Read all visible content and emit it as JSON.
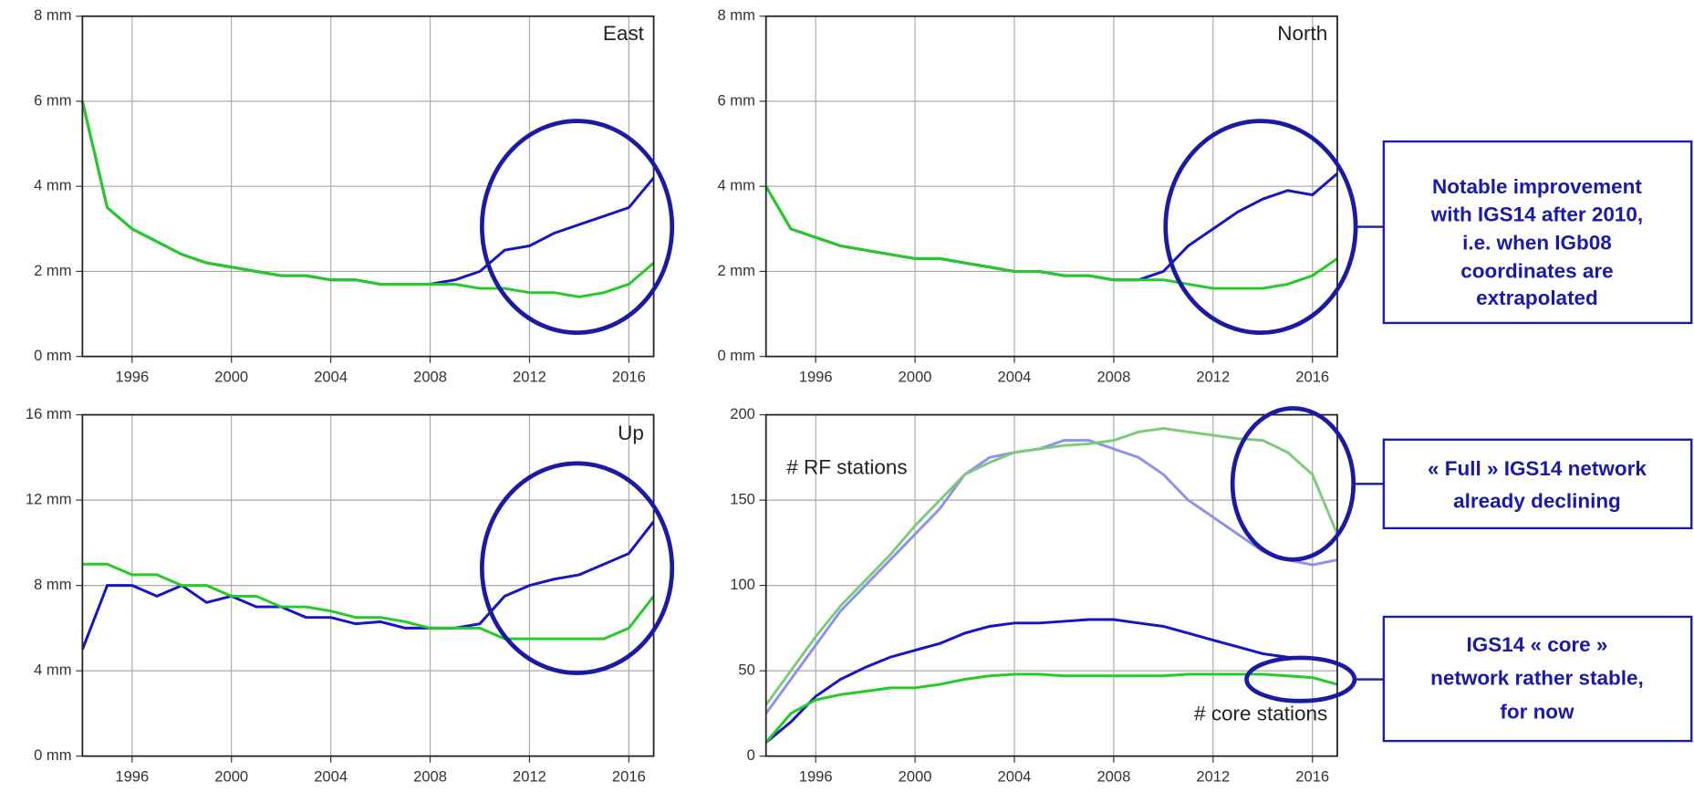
{
  "chart_data": [
    {
      "type": "line",
      "annotations": [
        "East"
      ],
      "x": [
        1994,
        1995,
        1996,
        1997,
        1998,
        1999,
        2000,
        2001,
        2002,
        2003,
        2004,
        2005,
        2006,
        2007,
        2008,
        2009,
        2010,
        2011,
        2012,
        2013,
        2014,
        2015,
        2016,
        2017
      ],
      "series": [
        {
          "color": "#1414c8",
          "values": [
            6,
            3.5,
            3,
            2.7,
            2.4,
            2.2,
            2.1,
            2.0,
            1.9,
            1.9,
            1.8,
            1.8,
            1.7,
            1.7,
            1.7,
            1.8,
            2.0,
            2.5,
            2.6,
            2.9,
            3.1,
            3.3,
            3.5,
            4.2
          ]
        },
        {
          "color": "#22cc22",
          "values": [
            6,
            3.5,
            3,
            2.7,
            2.4,
            2.2,
            2.1,
            2.0,
            1.9,
            1.9,
            1.8,
            1.8,
            1.7,
            1.7,
            1.7,
            1.7,
            1.6,
            1.6,
            1.5,
            1.5,
            1.4,
            1.5,
            1.7,
            2.2
          ]
        }
      ],
      "xlim": [
        1994,
        2017
      ],
      "xticks": [
        1996,
        2000,
        2004,
        2008,
        2012,
        2016
      ],
      "ylim": [
        0,
        8
      ],
      "yticks": [
        {
          "value": 0,
          "label": "0 mm"
        },
        {
          "value": 2,
          "label": "2 mm"
        },
        {
          "value": 4,
          "label": "4 mm"
        },
        {
          "value": 6,
          "label": "6 mm"
        },
        {
          "value": 8,
          "label": "8 mm"
        }
      ],
      "grid": true
    },
    {
      "type": "line",
      "annotations": [
        "North"
      ],
      "x": [
        1994,
        1995,
        1996,
        1997,
        1998,
        1999,
        2000,
        2001,
        2002,
        2003,
        2004,
        2005,
        2006,
        2007,
        2008,
        2009,
        2010,
        2011,
        2012,
        2013,
        2014,
        2015,
        2016,
        2017
      ],
      "series": [
        {
          "color": "#1414c8",
          "values": [
            4,
            3,
            2.8,
            2.6,
            2.5,
            2.4,
            2.3,
            2.3,
            2.2,
            2.1,
            2.0,
            2.0,
            1.9,
            1.9,
            1.8,
            1.8,
            2.0,
            2.6,
            3.0,
            3.4,
            3.7,
            3.9,
            3.8,
            4.3
          ]
        },
        {
          "color": "#22cc22",
          "values": [
            4,
            3,
            2.8,
            2.6,
            2.5,
            2.4,
            2.3,
            2.3,
            2.2,
            2.1,
            2.0,
            2.0,
            1.9,
            1.9,
            1.8,
            1.8,
            1.8,
            1.7,
            1.6,
            1.6,
            1.6,
            1.7,
            1.9,
            2.3
          ]
        }
      ],
      "xlim": [
        1994,
        2017
      ],
      "xticks": [
        1996,
        2000,
        2004,
        2008,
        2012,
        2016
      ],
      "ylim": [
        0,
        8
      ],
      "yticks": [
        {
          "value": 0,
          "label": "0 mm"
        },
        {
          "value": 2,
          "label": "2 mm"
        },
        {
          "value": 4,
          "label": "4 mm"
        },
        {
          "value": 6,
          "label": "6 mm"
        },
        {
          "value": 8,
          "label": "8 mm"
        }
      ],
      "grid": true
    },
    {
      "type": "line",
      "annotations": [
        "Up"
      ],
      "x": [
        1994,
        1995,
        1996,
        1997,
        1998,
        1999,
        2000,
        2001,
        2002,
        2003,
        2004,
        2005,
        2006,
        2007,
        2008,
        2009,
        2010,
        2011,
        2012,
        2013,
        2014,
        2015,
        2016,
        2017
      ],
      "series": [
        {
          "color": "#1414c8",
          "values": [
            5,
            8,
            8,
            7.5,
            8,
            7.2,
            7.5,
            7,
            7,
            6.5,
            6.5,
            6.2,
            6.3,
            6,
            6,
            6,
            6.2,
            7.5,
            8,
            8.3,
            8.5,
            9,
            9.5,
            11
          ]
        },
        {
          "color": "#22cc22",
          "values": [
            9,
            9,
            8.5,
            8.5,
            8,
            8,
            7.5,
            7.5,
            7,
            7,
            6.8,
            6.5,
            6.5,
            6.3,
            6,
            6,
            6,
            5.5,
            5.5,
            5.5,
            5.5,
            5.5,
            6,
            7.5
          ]
        }
      ],
      "xlim": [
        1994,
        2017
      ],
      "xticks": [
        1996,
        2000,
        2004,
        2008,
        2012,
        2016
      ],
      "ylim": [
        0,
        16
      ],
      "yticks": [
        {
          "value": 0,
          "label": "0 mm"
        },
        {
          "value": 4,
          "label": "4 mm"
        },
        {
          "value": 8,
          "label": "8 mm"
        },
        {
          "value": 12,
          "label": "12 mm"
        },
        {
          "value": 16,
          "label": "16 mm"
        }
      ],
      "grid": true
    },
    {
      "type": "line",
      "annotations": [
        "# RF stations",
        "# core stations"
      ],
      "x": [
        1994,
        1995,
        1996,
        1997,
        1998,
        1999,
        2000,
        2001,
        2002,
        2003,
        2004,
        2005,
        2006,
        2007,
        2008,
        2009,
        2010,
        2011,
        2012,
        2013,
        2014,
        2015,
        2016,
        2017
      ],
      "series": [
        {
          "color": "#9090ee",
          "values": [
            25,
            45,
            65,
            85,
            100,
            115,
            130,
            145,
            165,
            175,
            178,
            180,
            185,
            185,
            180,
            175,
            165,
            150,
            140,
            130,
            120,
            115,
            112,
            115
          ]
        },
        {
          "color": "#7acc7a",
          "values": [
            30,
            50,
            70,
            88,
            103,
            118,
            135,
            150,
            165,
            172,
            178,
            180,
            182,
            183,
            185,
            190,
            192,
            190,
            188,
            186,
            185,
            178,
            165,
            130
          ]
        },
        {
          "color": "#1414c8",
          "values": [
            8,
            20,
            35,
            45,
            52,
            58,
            62,
            66,
            72,
            76,
            78,
            78,
            79,
            80,
            80,
            78,
            76,
            72,
            68,
            64,
            60,
            58,
            57,
            55
          ]
        },
        {
          "color": "#22cc22",
          "values": [
            8,
            25,
            33,
            36,
            38,
            40,
            40,
            42,
            45,
            47,
            48,
            48,
            47,
            47,
            47,
            47,
            47,
            48,
            48,
            48,
            48,
            47,
            46,
            42
          ]
        }
      ],
      "xlim": [
        1994,
        2017
      ],
      "xticks": [
        1996,
        2000,
        2004,
        2008,
        2012,
        2016
      ],
      "ylim": [
        0,
        200
      ],
      "yticks": [
        0,
        50,
        100,
        150,
        200
      ],
      "grid": true
    }
  ],
  "notes": [
    {
      "lines": [
        "Notable improvement",
        "with IGS14 after 2010,",
        "i.e. when IGb08",
        "coordinates are",
        "extrapolated"
      ]
    },
    {
      "lines": [
        "« Full » IGS14 network",
        "already declining"
      ]
    },
    {
      "lines": [
        "IGS14 « core »",
        "network rather stable,",
        "for now"
      ]
    }
  ]
}
